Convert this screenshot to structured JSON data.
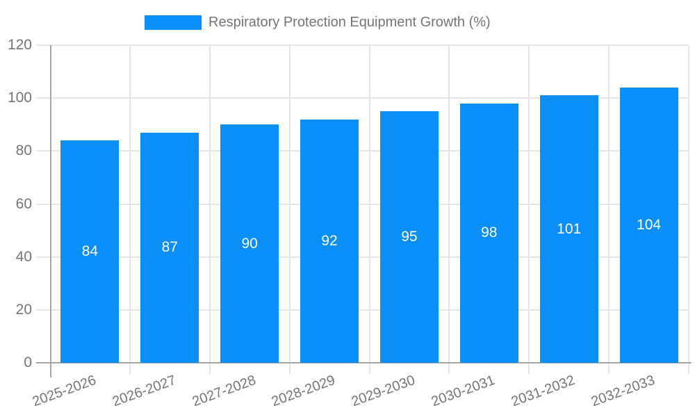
{
  "legend": {
    "label": "Respiratory Protection Equipment Growth (%)"
  },
  "chart_data": {
    "type": "bar",
    "title": "Respiratory Protection Equipment Growth (%)",
    "categories": [
      "2025-2026",
      "2026-2027",
      "2027-2028",
      "2028-2029",
      "2029-2030",
      "2030-2031",
      "2031-2032",
      "2032-2033"
    ],
    "values": [
      84,
      87,
      90,
      92,
      95,
      98,
      101,
      104
    ],
    "xlabel": "",
    "ylabel": "",
    "ylim": [
      0,
      120
    ],
    "yticks": [
      0,
      20,
      40,
      60,
      80,
      100,
      120
    ],
    "grid": true,
    "legend_position": "top",
    "value_labels": "inside-center",
    "xlabel_rotation_deg": -20
  },
  "colors": {
    "bar": "#0a8ff9",
    "axis_line": "#a6a6a6",
    "gridline": "#e6e6e6",
    "text": "#757575",
    "value_label": "#ffffff",
    "background": "#ffffff"
  }
}
